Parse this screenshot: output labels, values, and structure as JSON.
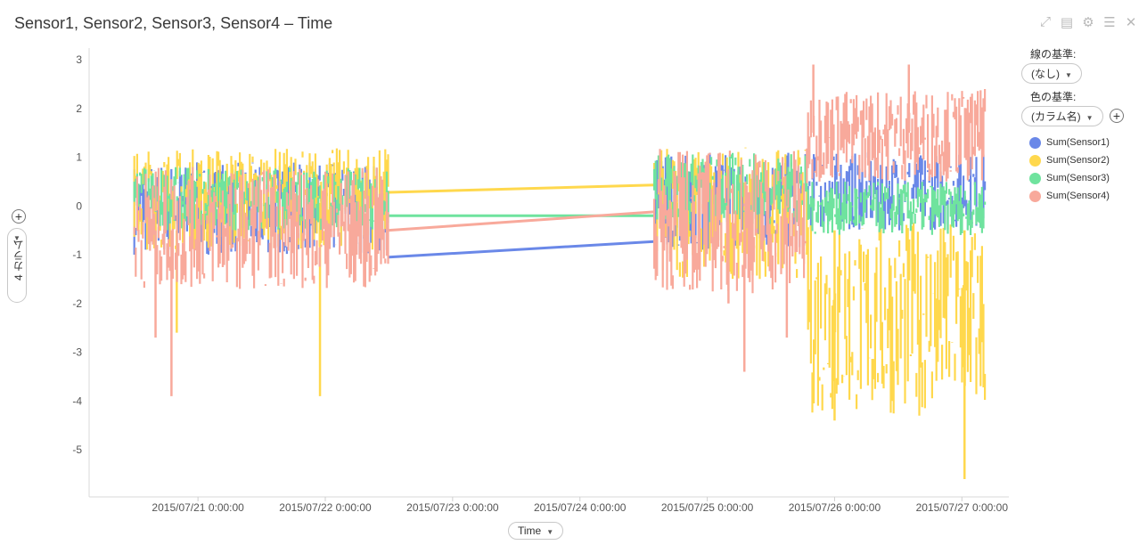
{
  "title": "Sensor1, Sensor2, Sensor3, Sensor4 – Time",
  "toolbar_icons": [
    "expand-icon",
    "export-icon",
    "gear-icon",
    "list-icon",
    "close-icon"
  ],
  "side_panel": {
    "line_by_label": "線の基準:",
    "line_by_value": "(なし)",
    "color_by_label": "色の基準:",
    "color_by_value": "(カラム名)"
  },
  "y_axis_selector": "4 カラム",
  "x_axis_selector": "Time",
  "chart_data": {
    "type": "line",
    "xlabel": "Time",
    "ylabel": "4 カラム",
    "ylim": [
      -5.9,
      3.3
    ],
    "yticks": [
      3,
      2,
      1,
      0,
      -1,
      -2,
      -3,
      -4,
      -5
    ],
    "xlim": [
      "2015/07/20 06:10",
      "2015/07/27 06:10"
    ],
    "xticks": [
      "2015/07/21 0:00:00",
      "2015/07/22 0:00:00",
      "2015/07/23 0:00:00",
      "2015/07/24 0:00:00",
      "2015/07/25 0:00:00",
      "2015/07/26 0:00:00",
      "2015/07/27 0:00:00"
    ],
    "grid": false,
    "legend_position": "right",
    "segments": [
      {
        "start": "2015/07/20 12:00",
        "end": "2015/07/22 12:00"
      },
      {
        "start": "2015/07/24 14:00",
        "end": "2015/07/27 04:30"
      }
    ],
    "series": [
      {
        "name": "Sum(Sensor1)",
        "color": "#6a88e8",
        "gap_line": {
          "from": -1.05,
          "to": -0.73
        },
        "bands": [
          {
            "start": "2015/07/20 12:00",
            "end": "2015/07/22 12:00",
            "min": -1.0,
            "max": 0.9
          },
          {
            "start": "2015/07/24 14:00",
            "end": "2015/07/25 19:00",
            "min": -0.9,
            "max": 1.1
          },
          {
            "start": "2015/07/25 19:00",
            "end": "2015/07/27 04:30",
            "min": -0.5,
            "max": 1.1
          }
        ]
      },
      {
        "name": "Sum(Sensor2)",
        "color": "#ffd84d",
        "gap_line": {
          "from": 0.28,
          "to": 0.43
        },
        "bands": [
          {
            "start": "2015/07/20 12:00",
            "end": "2015/07/22 12:00",
            "min": -0.9,
            "max": 1.2
          },
          {
            "start": "2015/07/24 14:00",
            "end": "2015/07/25 19:00",
            "min": -1.5,
            "max": 1.2
          },
          {
            "start": "2015/07/25 19:00",
            "end": "2015/07/27 04:30",
            "min": -4.3,
            "max": -0.3
          }
        ],
        "spikes": [
          {
            "t": "2015/07/21 23:00",
            "v": -3.9
          },
          {
            "t": "2015/07/27 00:30",
            "v": -5.6
          },
          {
            "t": "2015/07/26 00:00",
            "v": -4.4
          },
          {
            "t": "2015/07/20 20:00",
            "v": -2.6
          }
        ]
      },
      {
        "name": "Sum(Sensor3)",
        "color": "#6fe39e",
        "gap_line": {
          "from": -0.2,
          "to": -0.2
        },
        "bands": [
          {
            "start": "2015/07/20 12:00",
            "end": "2015/07/22 12:00",
            "min": -0.5,
            "max": 0.8
          },
          {
            "start": "2015/07/24 14:00",
            "end": "2015/07/25 19:00",
            "min": -0.4,
            "max": 1.1
          },
          {
            "start": "2015/07/25 19:00",
            "end": "2015/07/27 04:30",
            "min": -0.6,
            "max": 0.5
          }
        ]
      },
      {
        "name": "Sum(Sensor4)",
        "color": "#f8a99b",
        "gap_line": {
          "from": -0.5,
          "to": -0.12
        },
        "bands": [
          {
            "start": "2015/07/20 12:00",
            "end": "2015/07/22 12:00",
            "min": -1.7,
            "max": 0.8
          },
          {
            "start": "2015/07/24 14:00",
            "end": "2015/07/25 19:00",
            "min": -1.8,
            "max": 1.2
          },
          {
            "start": "2015/07/25 19:00",
            "end": "2015/07/27 04:30",
            "min": 0.5,
            "max": 2.4
          }
        ],
        "spikes": [
          {
            "t": "2015/07/20 19:00",
            "v": -3.9
          },
          {
            "t": "2015/07/20 16:00",
            "v": -2.7
          },
          {
            "t": "2015/07/25 07:00",
            "v": -3.4
          },
          {
            "t": "2015/07/25 15:00",
            "v": -2.7
          },
          {
            "t": "2015/07/25 04:00",
            "v": -2.0
          },
          {
            "t": "2015/07/26 14:00",
            "v": 2.9
          },
          {
            "t": "2015/07/25 20:00",
            "v": 2.9
          }
        ]
      }
    ]
  }
}
